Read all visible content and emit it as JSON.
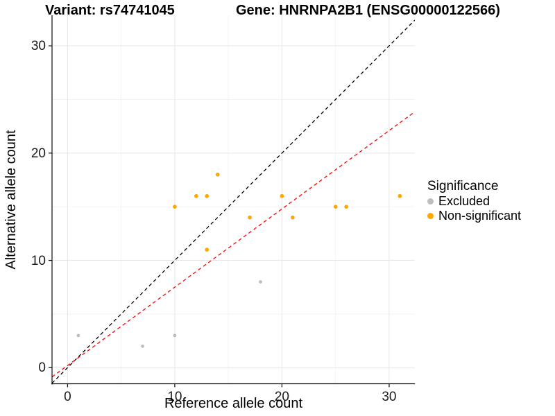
{
  "titles": {
    "left": "Variant: rs74741045",
    "right": "Gene: HNRNPA2B1 (ENSG00000122566)"
  },
  "legend": {
    "title": "Significance",
    "items": [
      {
        "label": "Excluded",
        "color": "#BEBEBE"
      },
      {
        "label": "Non-significant",
        "color": "#FFA500"
      }
    ]
  },
  "chart_data": {
    "type": "scatter",
    "title": "Variant: rs74741045 | Gene: HNRNPA2B1 (ENSG00000122566)",
    "xlabel": "Reference allele count",
    "ylabel": "Alternative allele count",
    "xlim": [
      -1.45,
      32.4
    ],
    "ylim": [
      -1.5,
      32.85
    ],
    "x_ticks": [
      0,
      10,
      20,
      30
    ],
    "y_ticks": [
      0,
      10,
      20,
      30
    ],
    "x_minor": [
      5,
      15,
      25
    ],
    "y_minor": [
      5,
      15,
      25
    ],
    "grid": true,
    "legend_position": "right",
    "legend_title": "Significance",
    "series": [
      {
        "name": "Excluded",
        "color": "#BEBEBE",
        "point_radius": 2.4,
        "points": [
          [
            1,
            3
          ],
          [
            7,
            2
          ],
          [
            10,
            3
          ],
          [
            18,
            8
          ]
        ]
      },
      {
        "name": "Non-significant",
        "color": "#FFA500",
        "point_radius": 2.8,
        "points": [
          [
            10,
            15
          ],
          [
            12,
            16
          ],
          [
            13,
            11
          ],
          [
            13,
            16
          ],
          [
            14,
            18
          ],
          [
            17,
            14
          ],
          [
            20,
            16
          ],
          [
            21,
            14
          ],
          [
            25,
            15
          ],
          [
            26,
            15
          ],
          [
            31,
            16
          ]
        ]
      }
    ],
    "lines": [
      {
        "name": "identity-line",
        "color": "#000000",
        "dashed": true,
        "slope": 1,
        "intercept": 0
      },
      {
        "name": "expected-ratio-line",
        "color": "#FF0000",
        "dashed": true,
        "slope": 0.73,
        "intercept": 0.2
      }
    ]
  },
  "style_colors": {
    "excluded": "#BEBEBE",
    "non_significant": "#FFA500",
    "identity_line": "#000000",
    "ratio_line": "#FF0000",
    "grid_major": "#E6E6E6",
    "grid_minor": "#F2F2F2",
    "axis": "#0A0A0A"
  }
}
